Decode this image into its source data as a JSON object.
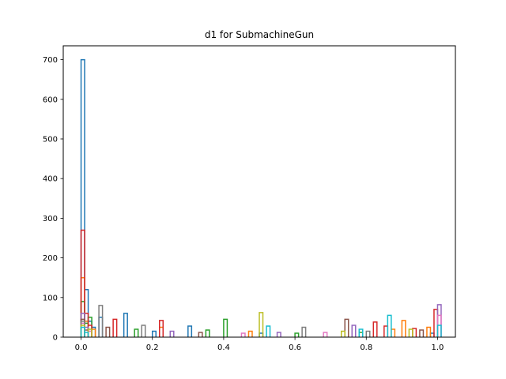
{
  "chart_data": {
    "type": "step-histogram",
    "title": "d1 for SubmachineGun",
    "xlabel": "",
    "ylabel": "",
    "xlim": [
      -0.05,
      1.05
    ],
    "ylim": [
      0,
      735
    ],
    "xticks": [
      0.0,
      0.2,
      0.4,
      0.6,
      0.8,
      1.0
    ],
    "xtick_labels": [
      "0.0",
      "0.2",
      "0.4",
      "0.6",
      "0.8",
      "1.0"
    ],
    "yticks": [
      0,
      100,
      200,
      300,
      400,
      500,
      600,
      700
    ],
    "ytick_labels": [
      "0",
      "100",
      "200",
      "300",
      "400",
      "500",
      "600",
      "700"
    ],
    "grid": false,
    "legend": "none",
    "bin_width": 0.01,
    "series": [
      {
        "color": "#1f77b4",
        "bins": [
          [
            0.0,
            700
          ],
          [
            0.01,
            120
          ],
          [
            0.02,
            40
          ],
          [
            0.03,
            25
          ],
          [
            0.05,
            50
          ],
          [
            0.12,
            60
          ],
          [
            0.2,
            15
          ],
          [
            0.3,
            28
          ],
          [
            0.5,
            10
          ],
          [
            0.98,
            10
          ]
        ]
      },
      {
        "color": "#ff7f0e",
        "bins": [
          [
            0.0,
            150
          ],
          [
            0.01,
            40
          ],
          [
            0.03,
            20
          ],
          [
            0.22,
            25
          ],
          [
            0.47,
            15
          ],
          [
            0.87,
            20
          ],
          [
            0.9,
            42
          ],
          [
            0.97,
            25
          ]
        ]
      },
      {
        "color": "#2ca02c",
        "bins": [
          [
            0.0,
            90
          ],
          [
            0.01,
            35
          ],
          [
            0.02,
            50
          ],
          [
            0.15,
            20
          ],
          [
            0.35,
            18
          ],
          [
            0.4,
            45
          ],
          [
            0.6,
            10
          ],
          [
            0.78,
            12
          ]
        ]
      },
      {
        "color": "#d62728",
        "bins": [
          [
            0.0,
            270
          ],
          [
            0.01,
            60
          ],
          [
            0.02,
            30
          ],
          [
            0.09,
            45
          ],
          [
            0.22,
            42
          ],
          [
            0.82,
            38
          ],
          [
            0.85,
            28
          ],
          [
            0.93,
            22
          ],
          [
            0.99,
            70
          ]
        ]
      },
      {
        "color": "#9467bd",
        "bins": [
          [
            0.0,
            60
          ],
          [
            0.01,
            25
          ],
          [
            0.25,
            15
          ],
          [
            0.55,
            12
          ],
          [
            0.76,
            30
          ],
          [
            1.0,
            82
          ]
        ]
      },
      {
        "color": "#8c564b",
        "bins": [
          [
            0.0,
            45
          ],
          [
            0.01,
            18
          ],
          [
            0.07,
            25
          ],
          [
            0.33,
            12
          ],
          [
            0.74,
            45
          ],
          [
            0.95,
            18
          ]
        ]
      },
      {
        "color": "#e377c2",
        "bins": [
          [
            0.0,
            35
          ],
          [
            0.02,
            15
          ],
          [
            0.45,
            10
          ],
          [
            0.68,
            12
          ],
          [
            1.0,
            55
          ]
        ]
      },
      {
        "color": "#7f7f7f",
        "bins": [
          [
            0.0,
            40
          ],
          [
            0.05,
            80
          ],
          [
            0.17,
            30
          ],
          [
            0.62,
            25
          ],
          [
            0.8,
            15
          ]
        ]
      },
      {
        "color": "#bcbd22",
        "bins": [
          [
            0.0,
            30
          ],
          [
            0.02,
            20
          ],
          [
            0.5,
            62
          ],
          [
            0.73,
            15
          ],
          [
            0.92,
            20
          ]
        ]
      },
      {
        "color": "#17becf",
        "bins": [
          [
            0.0,
            25
          ],
          [
            0.01,
            12
          ],
          [
            0.52,
            28
          ],
          [
            0.78,
            20
          ],
          [
            0.86,
            55
          ],
          [
            1.0,
            30
          ]
        ]
      }
    ]
  }
}
